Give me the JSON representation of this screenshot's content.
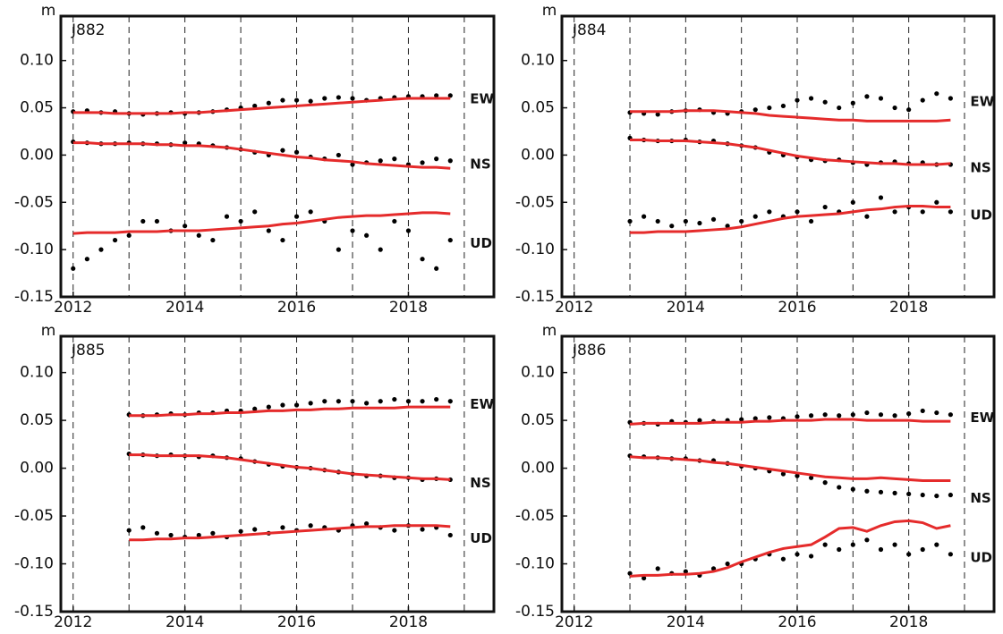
{
  "chart_data": [
    {
      "type": "scatter",
      "title": "J882",
      "ylabel": "m",
      "point_color": "#000000",
      "trend_color": "#e52b2b",
      "xlim": [
        2011.78,
        2019.53
      ],
      "ylim": [
        -0.15,
        0.147
      ],
      "xticks": [
        2012,
        2014,
        2016,
        2018
      ],
      "xgrid": [
        2012,
        2013,
        2014,
        2015,
        2016,
        2017,
        2018,
        2019
      ],
      "yticks": [
        {
          "value": 0.1,
          "label": "0.10"
        },
        {
          "value": 0.05,
          "label": "0.05"
        },
        {
          "value": 0,
          "label": "0.00"
        },
        {
          "value": -0.05,
          "label": "-0.05"
        },
        {
          "value": -0.1,
          "label": "-0.10"
        },
        {
          "value": -0.15,
          "label": "-0.15"
        }
      ],
      "x": [
        2012,
        2012.25,
        2012.5,
        2012.75,
        2013,
        2013.25,
        2013.5,
        2013.75,
        2014,
        2014.25,
        2014.5,
        2014.75,
        2015,
        2015.25,
        2015.5,
        2015.75,
        2016,
        2016.25,
        2016.5,
        2016.75,
        2017,
        2017.25,
        2017.5,
        2017.75,
        2018,
        2018.25,
        2018.5,
        2018.75
      ],
      "series": [
        {
          "name": "EW",
          "values": [
            0.046,
            0.047,
            0.045,
            0.046,
            0.044,
            0.043,
            0.044,
            0.045,
            0.044,
            0.045,
            0.046,
            0.048,
            0.05,
            0.052,
            0.055,
            0.058,
            0.058,
            0.057,
            0.06,
            0.061,
            0.06,
            0.058,
            0.06,
            0.061,
            0.062,
            0.062,
            0.063,
            0.063
          ]
        },
        {
          "name": "NS",
          "values": [
            0.014,
            0.013,
            0.012,
            0.012,
            0.013,
            0.012,
            0.012,
            0.011,
            0.013,
            0.012,
            0.01,
            0.008,
            0.006,
            0.003,
            0.0,
            0.005,
            0.003,
            -0.002,
            -0.004,
            0.0,
            -0.01,
            -0.008,
            -0.006,
            -0.004,
            -0.01,
            -0.008,
            -0.004,
            -0.006
          ]
        },
        {
          "name": "UD",
          "values": [
            -0.12,
            -0.11,
            -0.1,
            -0.09,
            -0.085,
            -0.07,
            -0.07,
            -0.08,
            -0.075,
            -0.085,
            -0.09,
            -0.065,
            -0.07,
            -0.06,
            -0.08,
            -0.09,
            -0.065,
            -0.06,
            -0.07,
            -0.1,
            -0.08,
            -0.085,
            -0.1,
            -0.07,
            -0.08,
            -0.11,
            -0.12,
            -0.09
          ]
        }
      ],
      "trends": [
        {
          "values": [
            0.045,
            0.045,
            0.045,
            0.044,
            0.044,
            0.044,
            0.044,
            0.044,
            0.045,
            0.045,
            0.046,
            0.047,
            0.048,
            0.049,
            0.05,
            0.051,
            0.052,
            0.053,
            0.054,
            0.055,
            0.056,
            0.057,
            0.058,
            0.059,
            0.06,
            0.06,
            0.06,
            0.06
          ]
        },
        {
          "values": [
            0.013,
            0.013,
            0.012,
            0.012,
            0.012,
            0.012,
            0.011,
            0.011,
            0.01,
            0.01,
            0.009,
            0.008,
            0.006,
            0.004,
            0.002,
            0.0,
            -0.002,
            -0.003,
            -0.005,
            -0.006,
            -0.007,
            -0.009,
            -0.01,
            -0.011,
            -0.012,
            -0.013,
            -0.013,
            -0.014
          ]
        },
        {
          "values": [
            -0.083,
            -0.082,
            -0.082,
            -0.082,
            -0.081,
            -0.081,
            -0.081,
            -0.08,
            -0.08,
            -0.08,
            -0.079,
            -0.078,
            -0.077,
            -0.076,
            -0.075,
            -0.073,
            -0.072,
            -0.07,
            -0.068,
            -0.066,
            -0.065,
            -0.064,
            -0.064,
            -0.063,
            -0.062,
            -0.061,
            -0.061,
            -0.062
          ]
        }
      ]
    },
    {
      "type": "scatter",
      "title": "J884",
      "ylabel": "m",
      "point_color": "#000000",
      "trend_color": "#e52b2b",
      "xlim": [
        2011.78,
        2019.53
      ],
      "ylim": [
        -0.15,
        0.147
      ],
      "xticks": [
        2012,
        2014,
        2016,
        2018
      ],
      "xgrid": [
        2012,
        2013,
        2014,
        2015,
        2016,
        2017,
        2018,
        2019
      ],
      "yticks": [
        {
          "value": 0.1,
          "label": "0.10"
        },
        {
          "value": 0.05,
          "label": "0.05"
        },
        {
          "value": 0,
          "label": "0.00"
        },
        {
          "value": -0.05,
          "label": "-0.05"
        },
        {
          "value": -0.1,
          "label": "-0.10"
        },
        {
          "value": -0.15,
          "label": "-0.15"
        }
      ],
      "x": [
        2013,
        2013.25,
        2013.5,
        2013.75,
        2014,
        2014.25,
        2014.5,
        2014.75,
        2015,
        2015.25,
        2015.5,
        2015.75,
        2016,
        2016.25,
        2016.5,
        2016.75,
        2017,
        2017.25,
        2017.5,
        2017.75,
        2018,
        2018.25,
        2018.5,
        2018.75
      ],
      "series": [
        {
          "name": "EW",
          "values": [
            0.045,
            0.044,
            0.043,
            0.046,
            0.047,
            0.048,
            0.045,
            0.044,
            0.046,
            0.048,
            0.05,
            0.052,
            0.058,
            0.06,
            0.056,
            0.05,
            0.055,
            0.062,
            0.06,
            0.05,
            0.048,
            0.058,
            0.065,
            0.06
          ]
        },
        {
          "name": "NS",
          "values": [
            0.018,
            0.016,
            0.015,
            0.015,
            0.016,
            0.014,
            0.015,
            0.012,
            0.01,
            0.008,
            0.003,
            0.0,
            -0.002,
            -0.005,
            -0.006,
            -0.005,
            -0.008,
            -0.01,
            -0.008,
            -0.007,
            -0.009,
            -0.008,
            -0.01,
            -0.01
          ]
        },
        {
          "name": "UD",
          "values": [
            -0.07,
            -0.065,
            -0.07,
            -0.075,
            -0.07,
            -0.072,
            -0.068,
            -0.075,
            -0.07,
            -0.065,
            -0.06,
            -0.065,
            -0.06,
            -0.07,
            -0.055,
            -0.06,
            -0.05,
            -0.065,
            -0.045,
            -0.06,
            -0.055,
            -0.06,
            -0.05,
            -0.06
          ]
        }
      ],
      "trends": [
        {
          "values": [
            0.046,
            0.046,
            0.046,
            0.046,
            0.047,
            0.047,
            0.047,
            0.046,
            0.045,
            0.044,
            0.042,
            0.041,
            0.04,
            0.039,
            0.038,
            0.037,
            0.037,
            0.036,
            0.036,
            0.036,
            0.036,
            0.036,
            0.036,
            0.037
          ]
        },
        {
          "values": [
            0.016,
            0.016,
            0.015,
            0.015,
            0.015,
            0.014,
            0.013,
            0.012,
            0.01,
            0.008,
            0.005,
            0.002,
            -0.001,
            -0.003,
            -0.005,
            -0.006,
            -0.007,
            -0.008,
            -0.009,
            -0.009,
            -0.01,
            -0.01,
            -0.01,
            -0.009
          ]
        },
        {
          "values": [
            -0.082,
            -0.082,
            -0.081,
            -0.081,
            -0.081,
            -0.08,
            -0.079,
            -0.078,
            -0.076,
            -0.073,
            -0.07,
            -0.067,
            -0.065,
            -0.064,
            -0.063,
            -0.062,
            -0.06,
            -0.058,
            -0.057,
            -0.055,
            -0.054,
            -0.054,
            -0.055,
            -0.055
          ]
        }
      ]
    },
    {
      "type": "scatter",
      "title": "J885",
      "ylabel": "m",
      "point_color": "#000000",
      "trend_color": "#e52b2b",
      "xlim": [
        2011.78,
        2019.53
      ],
      "ylim": [
        -0.15,
        0.138
      ],
      "xticks": [
        2012,
        2014,
        2016,
        2018
      ],
      "xgrid": [
        2012,
        2013,
        2014,
        2015,
        2016,
        2017,
        2018,
        2019
      ],
      "yticks": [
        {
          "value": 0.1,
          "label": "0.10"
        },
        {
          "value": 0.05,
          "label": "0.05"
        },
        {
          "value": 0,
          "label": "0.00"
        },
        {
          "value": -0.05,
          "label": "-0.05"
        },
        {
          "value": -0.1,
          "label": "-0.10"
        },
        {
          "value": -0.15,
          "label": "-0.15"
        }
      ],
      "x": [
        2013,
        2013.25,
        2013.5,
        2013.75,
        2014,
        2014.25,
        2014.5,
        2014.75,
        2015,
        2015.25,
        2015.5,
        2015.75,
        2016,
        2016.25,
        2016.5,
        2016.75,
        2017,
        2017.25,
        2017.5,
        2017.75,
        2018,
        2018.25,
        2018.5,
        2018.75
      ],
      "series": [
        {
          "name": "EW",
          "values": [
            0.056,
            0.055,
            0.056,
            0.057,
            0.056,
            0.058,
            0.058,
            0.06,
            0.06,
            0.062,
            0.064,
            0.066,
            0.066,
            0.068,
            0.07,
            0.07,
            0.07,
            0.068,
            0.07,
            0.072,
            0.07,
            0.07,
            0.072,
            0.07
          ]
        },
        {
          "name": "NS",
          "values": [
            0.015,
            0.014,
            0.013,
            0.014,
            0.013,
            0.012,
            0.013,
            0.011,
            0.01,
            0.007,
            0.004,
            0.002,
            0.001,
            0.0,
            -0.002,
            -0.004,
            -0.006,
            -0.008,
            -0.008,
            -0.01,
            -0.01,
            -0.012,
            -0.011,
            -0.012
          ]
        },
        {
          "name": "UD",
          "values": [
            -0.065,
            -0.062,
            -0.068,
            -0.07,
            -0.072,
            -0.07,
            -0.068,
            -0.072,
            -0.066,
            -0.064,
            -0.068,
            -0.062,
            -0.065,
            -0.06,
            -0.062,
            -0.065,
            -0.06,
            -0.058,
            -0.062,
            -0.065,
            -0.06,
            -0.064,
            -0.062,
            -0.07
          ]
        }
      ],
      "trends": [
        {
          "values": [
            0.055,
            0.055,
            0.055,
            0.056,
            0.056,
            0.057,
            0.057,
            0.058,
            0.058,
            0.059,
            0.06,
            0.06,
            0.061,
            0.061,
            0.062,
            0.062,
            0.063,
            0.063,
            0.063,
            0.063,
            0.064,
            0.064,
            0.064,
            0.064
          ]
        },
        {
          "values": [
            0.014,
            0.014,
            0.013,
            0.013,
            0.013,
            0.013,
            0.012,
            0.011,
            0.009,
            0.007,
            0.005,
            0.003,
            0.001,
            0.0,
            -0.002,
            -0.004,
            -0.006,
            -0.007,
            -0.008,
            -0.009,
            -0.01,
            -0.011,
            -0.011,
            -0.012
          ]
        },
        {
          "values": [
            -0.075,
            -0.075,
            -0.074,
            -0.074,
            -0.073,
            -0.073,
            -0.072,
            -0.071,
            -0.07,
            -0.069,
            -0.068,
            -0.067,
            -0.066,
            -0.065,
            -0.064,
            -0.063,
            -0.062,
            -0.061,
            -0.061,
            -0.06,
            -0.06,
            -0.06,
            -0.06,
            -0.061
          ]
        }
      ]
    },
    {
      "type": "scatter",
      "title": "J886",
      "ylabel": "m",
      "point_color": "#000000",
      "trend_color": "#e52b2b",
      "xlim": [
        2011.78,
        2019.53
      ],
      "ylim": [
        -0.15,
        0.138
      ],
      "xticks": [
        2012,
        2014,
        2016,
        2018
      ],
      "xgrid": [
        2012,
        2013,
        2014,
        2015,
        2016,
        2017,
        2018,
        2019
      ],
      "yticks": [
        {
          "value": 0.1,
          "label": "0.10"
        },
        {
          "value": 0.05,
          "label": "0.05"
        },
        {
          "value": 0,
          "label": "0.00"
        },
        {
          "value": -0.05,
          "label": "-0.05"
        },
        {
          "value": -0.1,
          "label": "-0.10"
        },
        {
          "value": -0.15,
          "label": "-0.15"
        }
      ],
      "x": [
        2013,
        2013.25,
        2013.5,
        2013.75,
        2014,
        2014.25,
        2014.5,
        2014.75,
        2015,
        2015.25,
        2015.5,
        2015.75,
        2016,
        2016.25,
        2016.5,
        2016.75,
        2017,
        2017.25,
        2017.5,
        2017.75,
        2018,
        2018.25,
        2018.5,
        2018.75
      ],
      "series": [
        {
          "name": "EW",
          "values": [
            0.048,
            0.047,
            0.046,
            0.049,
            0.048,
            0.05,
            0.049,
            0.05,
            0.051,
            0.052,
            0.053,
            0.052,
            0.054,
            0.055,
            0.056,
            0.055,
            0.056,
            0.058,
            0.056,
            0.055,
            0.057,
            0.06,
            0.058,
            0.056
          ]
        },
        {
          "name": "NS",
          "values": [
            0.013,
            0.012,
            0.011,
            0.01,
            0.01,
            0.008,
            0.008,
            0.005,
            0.002,
            0.0,
            -0.003,
            -0.006,
            -0.008,
            -0.01,
            -0.015,
            -0.02,
            -0.022,
            -0.024,
            -0.025,
            -0.026,
            -0.027,
            -0.028,
            -0.029,
            -0.028
          ]
        },
        {
          "name": "UD",
          "values": [
            -0.11,
            -0.115,
            -0.105,
            -0.11,
            -0.108,
            -0.112,
            -0.105,
            -0.1,
            -0.1,
            -0.095,
            -0.09,
            -0.095,
            -0.09,
            -0.092,
            -0.08,
            -0.085,
            -0.08,
            -0.075,
            -0.085,
            -0.08,
            -0.09,
            -0.085,
            -0.08,
            -0.09
          ]
        }
      ],
      "trends": [
        {
          "values": [
            0.046,
            0.047,
            0.047,
            0.047,
            0.047,
            0.047,
            0.048,
            0.048,
            0.048,
            0.049,
            0.049,
            0.05,
            0.05,
            0.05,
            0.051,
            0.051,
            0.051,
            0.05,
            0.05,
            0.05,
            0.05,
            0.049,
            0.049,
            0.049
          ]
        },
        {
          "values": [
            0.012,
            0.011,
            0.011,
            0.01,
            0.009,
            0.008,
            0.006,
            0.005,
            0.003,
            0.001,
            -0.001,
            -0.003,
            -0.005,
            -0.007,
            -0.009,
            -0.01,
            -0.011,
            -0.011,
            -0.01,
            -0.011,
            -0.012,
            -0.013,
            -0.013,
            -0.013
          ]
        },
        {
          "values": [
            -0.113,
            -0.112,
            -0.112,
            -0.111,
            -0.111,
            -0.11,
            -0.108,
            -0.104,
            -0.098,
            -0.093,
            -0.088,
            -0.084,
            -0.082,
            -0.08,
            -0.072,
            -0.063,
            -0.062,
            -0.066,
            -0.06,
            -0.056,
            -0.055,
            -0.057,
            -0.063,
            -0.06
          ]
        }
      ]
    }
  ]
}
